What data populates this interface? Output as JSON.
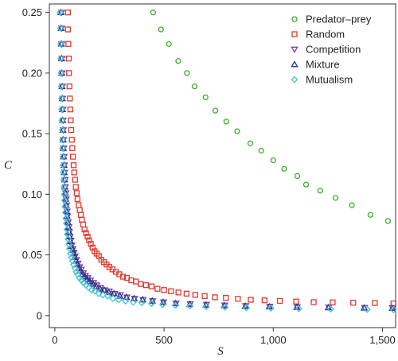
{
  "chart_data": {
    "type": "scatter",
    "title": "",
    "xlabel": "S",
    "ylabel": "C",
    "xlim": [
      -25,
      1560
    ],
    "ylim": [
      -0.01,
      0.257
    ],
    "xticks": [
      0,
      500,
      1000,
      1500
    ],
    "xtick_labels": [
      "0",
      "500",
      "1,000",
      "1,500"
    ],
    "yticks": [
      0,
      0.05,
      0.1,
      0.15,
      0.2,
      0.25
    ],
    "ytick_labels": [
      "0",
      "0.05",
      "0.10",
      "0.15",
      "0.20",
      "0.25"
    ],
    "grid": false,
    "legend_position": "top-right",
    "series": [
      {
        "name": "Predator–prey",
        "marker": "circle",
        "color": "#3dae2b",
        "points": [
          [
            450,
            0.25
          ],
          [
            486,
            0.236
          ],
          [
            522,
            0.224
          ],
          [
            565,
            0.21
          ],
          [
            605,
            0.2
          ],
          [
            640,
            0.189
          ],
          [
            690,
            0.18
          ],
          [
            735,
            0.169
          ],
          [
            785,
            0.16
          ],
          [
            835,
            0.152
          ],
          [
            895,
            0.142
          ],
          [
            945,
            0.136
          ],
          [
            1000,
            0.128
          ],
          [
            1050,
            0.121
          ],
          [
            1110,
            0.115
          ],
          [
            1150,
            0.108
          ],
          [
            1215,
            0.103
          ],
          [
            1285,
            0.097
          ],
          [
            1360,
            0.091
          ],
          [
            1445,
            0.083
          ],
          [
            1525,
            0.078
          ]
        ]
      },
      {
        "name": "Random",
        "marker": "square",
        "color": "#e23a2e",
        "points": [
          [
            60,
            0.25
          ],
          [
            60,
            0.236
          ],
          [
            62,
            0.224
          ],
          [
            64,
            0.212
          ],
          [
            65,
            0.2
          ],
          [
            67,
            0.189
          ],
          [
            69,
            0.179
          ],
          [
            71,
            0.17
          ],
          [
            73,
            0.161
          ],
          [
            75,
            0.153
          ],
          [
            78,
            0.145
          ],
          [
            80,
            0.138
          ],
          [
            83,
            0.131
          ],
          [
            86,
            0.124
          ],
          [
            89,
            0.118
          ],
          [
            93,
            0.112
          ],
          [
            96,
            0.106
          ],
          [
            100,
            0.101
          ],
          [
            104,
            0.096
          ],
          [
            109,
            0.091
          ],
          [
            114,
            0.087
          ],
          [
            119,
            0.083
          ],
          [
            124,
            0.079
          ],
          [
            130,
            0.075
          ],
          [
            136,
            0.071
          ],
          [
            143,
            0.068
          ],
          [
            150,
            0.065
          ],
          [
            157,
            0.062
          ],
          [
            165,
            0.059
          ],
          [
            173,
            0.056
          ],
          [
            182,
            0.053
          ],
          [
            192,
            0.051
          ],
          [
            202,
            0.049
          ],
          [
            213,
            0.046
          ],
          [
            225,
            0.044
          ],
          [
            237,
            0.042
          ],
          [
            250,
            0.04
          ],
          [
            264,
            0.038
          ],
          [
            279,
            0.036
          ],
          [
            295,
            0.034
          ],
          [
            312,
            0.032
          ],
          [
            330,
            0.031
          ],
          [
            350,
            0.029
          ],
          [
            371,
            0.028
          ],
          [
            393,
            0.026
          ],
          [
            417,
            0.025
          ],
          [
            443,
            0.024
          ],
          [
            470,
            0.022
          ],
          [
            500,
            0.021
          ],
          [
            532,
            0.02
          ],
          [
            566,
            0.019
          ],
          [
            603,
            0.018
          ],
          [
            643,
            0.017
          ],
          [
            686,
            0.016
          ],
          [
            733,
            0.015
          ],
          [
            783,
            0.0145
          ],
          [
            838,
            0.0138
          ],
          [
            897,
            0.013
          ],
          [
            960,
            0.0125
          ],
          [
            1030,
            0.012
          ],
          [
            1105,
            0.0115
          ],
          [
            1185,
            0.011
          ],
          [
            1272,
            0.0108
          ],
          [
            1366,
            0.0105
          ],
          [
            1465,
            0.0103
          ],
          [
            1550,
            0.01
          ]
        ]
      },
      {
        "name": "Competition",
        "marker": "triangle-down",
        "color": "#8b3a9a",
        "points": [
          [
            30,
            0.25
          ],
          [
            31,
            0.237
          ],
          [
            32,
            0.224
          ],
          [
            33,
            0.212
          ],
          [
            34,
            0.2
          ],
          [
            35,
            0.189
          ],
          [
            36,
            0.179
          ],
          [
            37,
            0.17
          ],
          [
            38,
            0.161
          ],
          [
            39,
            0.153
          ],
          [
            40,
            0.145
          ],
          [
            41,
            0.138
          ],
          [
            42,
            0.131
          ],
          [
            44,
            0.124
          ],
          [
            45,
            0.118
          ],
          [
            47,
            0.112
          ],
          [
            48,
            0.106
          ],
          [
            50,
            0.101
          ],
          [
            52,
            0.096
          ],
          [
            54,
            0.091
          ],
          [
            56,
            0.086
          ],
          [
            58,
            0.082
          ],
          [
            61,
            0.077
          ],
          [
            64,
            0.073
          ],
          [
            67,
            0.069
          ],
          [
            70,
            0.065
          ],
          [
            74,
            0.062
          ],
          [
            78,
            0.058
          ],
          [
            83,
            0.055
          ],
          [
            88,
            0.052
          ],
          [
            93,
            0.049
          ],
          [
            99,
            0.046
          ],
          [
            106,
            0.043
          ],
          [
            113,
            0.04
          ],
          [
            121,
            0.038
          ],
          [
            130,
            0.035
          ],
          [
            140,
            0.033
          ],
          [
            151,
            0.031
          ],
          [
            163,
            0.029
          ],
          [
            177,
            0.027
          ],
          [
            192,
            0.025
          ],
          [
            209,
            0.023
          ],
          [
            228,
            0.021
          ],
          [
            249,
            0.02
          ],
          [
            273,
            0.018
          ],
          [
            300,
            0.017
          ],
          [
            330,
            0.015
          ],
          [
            365,
            0.014
          ],
          [
            404,
            0.013
          ],
          [
            448,
            0.012
          ],
          [
            498,
            0.011
          ],
          [
            555,
            0.01
          ],
          [
            620,
            0.0095
          ],
          [
            694,
            0.009
          ],
          [
            778,
            0.0085
          ],
          [
            874,
            0.008
          ],
          [
            984,
            0.0075
          ],
          [
            1110,
            0.007
          ],
          [
            1254,
            0.0068
          ],
          [
            1418,
            0.0065
          ],
          [
            1545,
            0.0063
          ]
        ]
      },
      {
        "name": "Mixture",
        "marker": "triangle-up",
        "color": "#1f3b8f",
        "points": [
          [
            28,
            0.25
          ],
          [
            29,
            0.237
          ],
          [
            30,
            0.224
          ],
          [
            31,
            0.212
          ],
          [
            32,
            0.2
          ],
          [
            33,
            0.189
          ],
          [
            34,
            0.179
          ],
          [
            35,
            0.17
          ],
          [
            36,
            0.161
          ],
          [
            37,
            0.153
          ],
          [
            38,
            0.145
          ],
          [
            39,
            0.138
          ],
          [
            40,
            0.131
          ],
          [
            42,
            0.124
          ],
          [
            43,
            0.118
          ],
          [
            45,
            0.112
          ],
          [
            46,
            0.106
          ],
          [
            48,
            0.101
          ],
          [
            50,
            0.096
          ],
          [
            52,
            0.091
          ],
          [
            54,
            0.086
          ],
          [
            56,
            0.082
          ],
          [
            59,
            0.077
          ],
          [
            62,
            0.073
          ],
          [
            65,
            0.069
          ],
          [
            68,
            0.065
          ],
          [
            72,
            0.061
          ],
          [
            76,
            0.057
          ],
          [
            81,
            0.054
          ],
          [
            86,
            0.051
          ],
          [
            91,
            0.048
          ],
          [
            97,
            0.045
          ],
          [
            104,
            0.042
          ],
          [
            111,
            0.039
          ],
          [
            119,
            0.037
          ],
          [
            128,
            0.034
          ],
          [
            138,
            0.032
          ],
          [
            149,
            0.03
          ],
          [
            161,
            0.028
          ],
          [
            175,
            0.026
          ],
          [
            190,
            0.024
          ],
          [
            207,
            0.022
          ],
          [
            226,
            0.021
          ],
          [
            247,
            0.019
          ],
          [
            271,
            0.018
          ],
          [
            298,
            0.016
          ],
          [
            328,
            0.015
          ],
          [
            363,
            0.014
          ],
          [
            402,
            0.013
          ],
          [
            446,
            0.012
          ],
          [
            496,
            0.011
          ],
          [
            553,
            0.01
          ],
          [
            618,
            0.0093
          ],
          [
            692,
            0.0087
          ],
          [
            776,
            0.0082
          ],
          [
            872,
            0.0077
          ],
          [
            982,
            0.0072
          ],
          [
            1108,
            0.0068
          ],
          [
            1252,
            0.0065
          ],
          [
            1416,
            0.0062
          ],
          [
            1545,
            0.006
          ]
        ]
      },
      {
        "name": "Mutualism",
        "marker": "diamond",
        "color": "#46c3d3",
        "points": [
          [
            25,
            0.25
          ],
          [
            26,
            0.237
          ],
          [
            27,
            0.224
          ],
          [
            28,
            0.212
          ],
          [
            29,
            0.2
          ],
          [
            30,
            0.189
          ],
          [
            31,
            0.179
          ],
          [
            32,
            0.17
          ],
          [
            33,
            0.161
          ],
          [
            34,
            0.153
          ],
          [
            35,
            0.145
          ],
          [
            36,
            0.138
          ],
          [
            37,
            0.131
          ],
          [
            38,
            0.124
          ],
          [
            39,
            0.118
          ],
          [
            41,
            0.112
          ],
          [
            42,
            0.106
          ],
          [
            44,
            0.1
          ],
          [
            45,
            0.095
          ],
          [
            47,
            0.09
          ],
          [
            49,
            0.085
          ],
          [
            51,
            0.08
          ],
          [
            53,
            0.076
          ],
          [
            56,
            0.071
          ],
          [
            58,
            0.067
          ],
          [
            61,
            0.063
          ],
          [
            64,
            0.059
          ],
          [
            68,
            0.055
          ],
          [
            72,
            0.051
          ],
          [
            76,
            0.048
          ],
          [
            81,
            0.045
          ],
          [
            86,
            0.042
          ],
          [
            92,
            0.039
          ],
          [
            98,
            0.036
          ],
          [
            105,
            0.034
          ],
          [
            113,
            0.031
          ],
          [
            122,
            0.029
          ],
          [
            132,
            0.027
          ],
          [
            143,
            0.025
          ],
          [
            155,
            0.023
          ],
          [
            169,
            0.021
          ],
          [
            184,
            0.02
          ],
          [
            201,
            0.018
          ],
          [
            220,
            0.017
          ],
          [
            242,
            0.016
          ],
          [
            266,
            0.014
          ],
          [
            293,
            0.013
          ],
          [
            324,
            0.012
          ],
          [
            359,
            0.011
          ],
          [
            398,
            0.0105
          ],
          [
            443,
            0.0098
          ],
          [
            494,
            0.009
          ],
          [
            552,
            0.0084
          ],
          [
            618,
            0.0078
          ],
          [
            693,
            0.0073
          ],
          [
            779,
            0.0068
          ],
          [
            877,
            0.0064
          ],
          [
            989,
            0.006
          ],
          [
            1117,
            0.0056
          ],
          [
            1263,
            0.0053
          ],
          [
            1430,
            0.005
          ],
          [
            1550,
            0.0048
          ]
        ]
      }
    ]
  }
}
